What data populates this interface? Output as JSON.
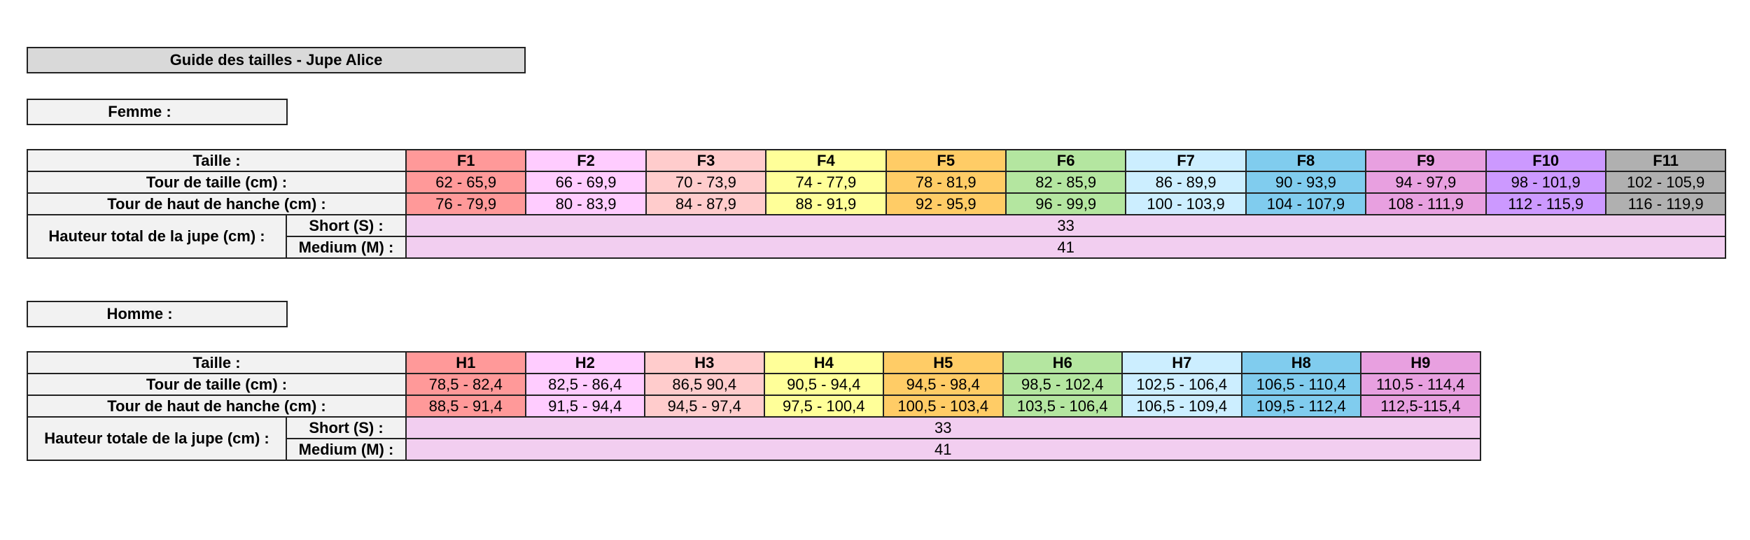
{
  "title": "Guide des tailles - Jupe Alice",
  "colors": {
    "c1": "#ff9999",
    "c2": "#ffccff",
    "c3": "#ffcccc",
    "c4": "#ffff99",
    "c5": "#ffcc66",
    "c6": "#b4e6a0",
    "c7": "#cceeff",
    "c8": "#80ccee",
    "c9": "#e8a0e0",
    "c10": "#cc99ff",
    "c11": "#b0b0b0",
    "merged": "#f2cef0",
    "label_bg": "#f2f2f2",
    "title_bg": "#d9d9d9"
  },
  "femme": {
    "section_label": "Femme :",
    "taille_label": "Taille :",
    "tour_taille_label": "Tour de taille (cm) :",
    "tour_hanche_label": "Tour de haut de hanche (cm) :",
    "hauteur_label": "Hauteur total de la jupe (cm) :",
    "short_label": "Short (S) :",
    "medium_label": "Medium (M) :",
    "short_value": "33",
    "medium_value": "41",
    "sizes": [
      {
        "code": "F1",
        "taille": "62 - 65,9",
        "hanche": "76 - 79,9",
        "color": "#ff9999"
      },
      {
        "code": "F2",
        "taille": "66 - 69,9",
        "hanche": "80 - 83,9",
        "color": "#ffccff"
      },
      {
        "code": "F3",
        "taille": "70 - 73,9",
        "hanche": "84 - 87,9",
        "color": "#ffcccc"
      },
      {
        "code": "F4",
        "taille": "74 - 77,9",
        "hanche": "88 - 91,9",
        "color": "#ffff99"
      },
      {
        "code": "F5",
        "taille": "78 - 81,9",
        "hanche": "92 - 95,9",
        "color": "#ffcc66"
      },
      {
        "code": "F6",
        "taille": "82 - 85,9",
        "hanche": "96 - 99,9",
        "color": "#b4e6a0"
      },
      {
        "code": "F7",
        "taille": "86 - 89,9",
        "hanche": "100 - 103,9",
        "color": "#cceeff"
      },
      {
        "code": "F8",
        "taille": "90 - 93,9",
        "hanche": "104 - 107,9",
        "color": "#80ccee"
      },
      {
        "code": "F9",
        "taille": "94 - 97,9",
        "hanche": "108 - 111,9",
        "color": "#e8a0e0"
      },
      {
        "code": "F10",
        "taille": "98 - 101,9",
        "hanche": "112 - 115,9",
        "color": "#cc99ff"
      },
      {
        "code": "F11",
        "taille": "102 - 105,9",
        "hanche": "116 - 119,9",
        "color": "#b0b0b0"
      }
    ]
  },
  "homme": {
    "section_label": "Homme :",
    "taille_label": "Taille :",
    "tour_taille_label": "Tour de taille (cm) :",
    "tour_hanche_label": "Tour de haut de hanche (cm) :",
    "hauteur_label": "Hauteur totale de la jupe (cm) :",
    "short_label": "Short (S) :",
    "medium_label": "Medium (M) :",
    "short_value": "33",
    "medium_value": "41",
    "sizes": [
      {
        "code": "H1",
        "taille": "78,5 - 82,4",
        "hanche": "88,5 - 91,4",
        "color": "#ff9999"
      },
      {
        "code": "H2",
        "taille": "82,5 - 86,4",
        "hanche": "91,5 - 94,4",
        "color": "#ffccff"
      },
      {
        "code": "H3",
        "taille": "86,5 90,4",
        "hanche": "94,5 - 97,4",
        "color": "#ffcccc"
      },
      {
        "code": "H4",
        "taille": "90,5 - 94,4",
        "hanche": "97,5 - 100,4",
        "color": "#ffff99"
      },
      {
        "code": "H5",
        "taille": "94,5 - 98,4",
        "hanche": "100,5 - 103,4",
        "color": "#ffcc66"
      },
      {
        "code": "H6",
        "taille": "98,5 - 102,4",
        "hanche": "103,5 - 106,4",
        "color": "#b4e6a0"
      },
      {
        "code": "H7",
        "taille": "102,5 - 106,4",
        "hanche": "106,5 - 109,4",
        "color": "#cceeff"
      },
      {
        "code": "H8",
        "taille": "106,5 - 110,4",
        "hanche": "109,5 - 112,4",
        "color": "#80ccee"
      },
      {
        "code": "H9",
        "taille": "110,5 - 114,4",
        "hanche": "112,5-115,4",
        "color": "#e8a0e0"
      }
    ]
  }
}
